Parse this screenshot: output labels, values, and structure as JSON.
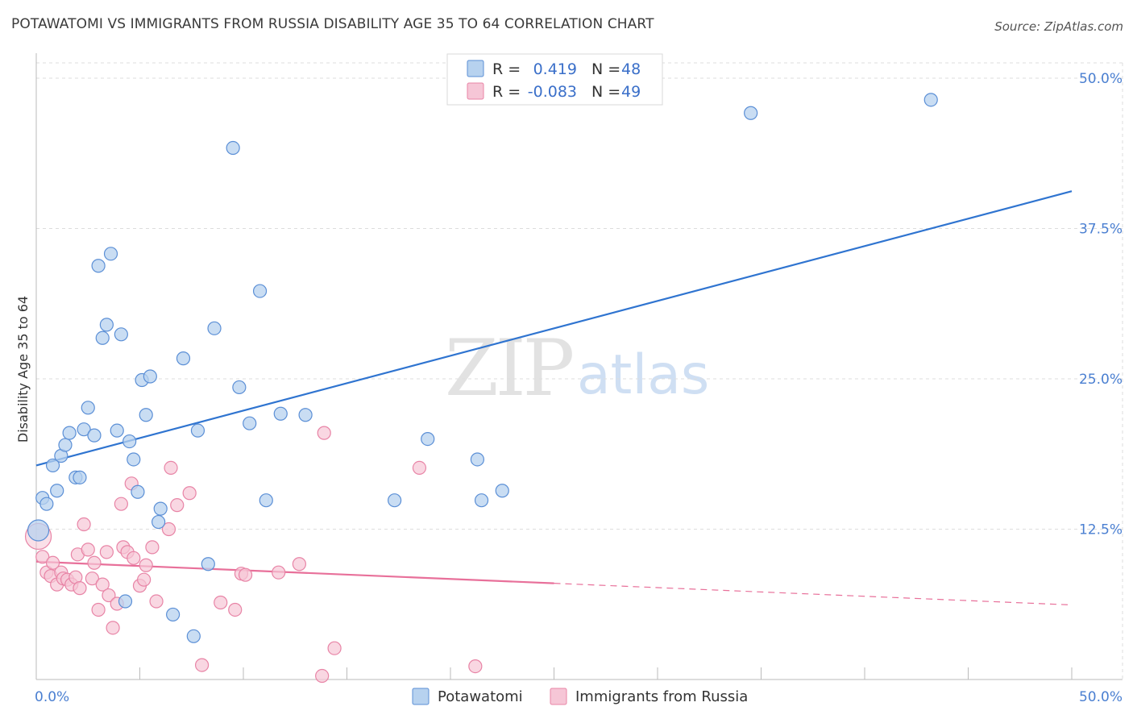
{
  "header": {
    "title": "POTAWATOMI VS IMMIGRANTS FROM RUSSIA DISABILITY AGE 35 TO 64 CORRELATION CHART",
    "source": "Source: ZipAtlas.com"
  },
  "watermark": {
    "zip": "ZIP",
    "atlas": "atlas"
  },
  "colors": {
    "blue_fill": "#b7d2ef",
    "blue_stroke": "#5b8fd6",
    "blue_line": "#2f74d0",
    "pink_fill": "#f6c6d6",
    "pink_stroke": "#e884a6",
    "pink_line": "#e8709a",
    "axis_label": "#4a7fd1",
    "grid": "#dddddd"
  },
  "legend": {
    "rows": [
      {
        "r_label": "R =",
        "r_value": "0.419",
        "n_label": "N =",
        "n_value": "48"
      },
      {
        "r_label": "R =",
        "r_value": "-0.083",
        "n_label": "N =",
        "n_value": "49"
      }
    ]
  },
  "chart_data": {
    "type": "scatter",
    "title": "POTAWATOMI VS IMMIGRANTS FROM RUSSIA DISABILITY AGE 35 TO 64 CORRELATION CHART",
    "xlabel": "",
    "ylabel": "Disability Age 35 to 64",
    "xlim": [
      0,
      50
    ],
    "ylim": [
      0,
      50
    ],
    "x_tick_labels": [
      "0.0%",
      "50.0%"
    ],
    "y_tick_values": [
      12.5,
      25.0,
      37.5,
      50.0
    ],
    "y_tick_labels": [
      "12.5%",
      "25.0%",
      "37.5%",
      "50.0%"
    ],
    "grid": true,
    "legend_position": "top-center",
    "series": [
      {
        "name": "Potawatomi",
        "color": "blue",
        "r": 0.419,
        "n": 48,
        "trend": {
          "x": [
            0,
            50
          ],
          "y": [
            17.8,
            40.6
          ],
          "dashed_from": null
        },
        "points": [
          [
            0.1,
            12.4
          ],
          [
            0.3,
            15.1
          ],
          [
            0.5,
            14.6
          ],
          [
            0.8,
            17.8
          ],
          [
            1.0,
            15.7
          ],
          [
            1.2,
            18.6
          ],
          [
            1.4,
            19.5
          ],
          [
            1.6,
            20.5
          ],
          [
            1.9,
            16.8
          ],
          [
            2.1,
            16.8
          ],
          [
            2.3,
            20.8
          ],
          [
            2.5,
            22.6
          ],
          [
            2.8,
            20.3
          ],
          [
            3.0,
            34.4
          ],
          [
            3.2,
            28.4
          ],
          [
            3.4,
            29.5
          ],
          [
            3.6,
            35.4
          ],
          [
            3.9,
            20.7
          ],
          [
            4.1,
            28.7
          ],
          [
            4.3,
            6.5
          ],
          [
            4.5,
            19.8
          ],
          [
            4.7,
            18.3
          ],
          [
            4.9,
            15.6
          ],
          [
            5.1,
            24.9
          ],
          [
            5.3,
            22.0
          ],
          [
            5.5,
            25.2
          ],
          [
            5.9,
            13.1
          ],
          [
            6.0,
            14.2
          ],
          [
            6.6,
            5.4
          ],
          [
            7.1,
            26.7
          ],
          [
            7.6,
            3.6
          ],
          [
            7.8,
            20.7
          ],
          [
            8.3,
            9.6
          ],
          [
            8.6,
            29.2
          ],
          [
            9.5,
            44.2
          ],
          [
            9.8,
            24.3
          ],
          [
            10.3,
            21.3
          ],
          [
            10.8,
            32.3
          ],
          [
            11.1,
            14.9
          ],
          [
            11.8,
            22.1
          ],
          [
            13.0,
            22.0
          ],
          [
            17.3,
            14.9
          ],
          [
            18.9,
            20.0
          ],
          [
            21.3,
            18.3
          ],
          [
            21.5,
            14.9
          ],
          [
            22.5,
            15.7
          ],
          [
            34.5,
            47.1
          ],
          [
            43.2,
            48.2
          ]
        ]
      },
      {
        "name": "Immigrants from Russia",
        "color": "pink",
        "r": -0.083,
        "n": 49,
        "trend": {
          "x": [
            0,
            50
          ],
          "y": [
            9.8,
            6.2
          ],
          "dashed_from": 25.0
        },
        "points": [
          [
            0.1,
            11.9
          ],
          [
            0.3,
            10.2
          ],
          [
            0.5,
            8.9
          ],
          [
            0.7,
            8.6
          ],
          [
            0.8,
            9.7
          ],
          [
            1.0,
            7.9
          ],
          [
            1.2,
            8.9
          ],
          [
            1.3,
            8.4
          ],
          [
            1.5,
            8.3
          ],
          [
            1.7,
            7.9
          ],
          [
            1.9,
            8.5
          ],
          [
            2.0,
            10.4
          ],
          [
            2.1,
            7.6
          ],
          [
            2.3,
            12.9
          ],
          [
            2.5,
            10.8
          ],
          [
            2.7,
            8.4
          ],
          [
            2.8,
            9.7
          ],
          [
            3.0,
            5.8
          ],
          [
            3.2,
            7.9
          ],
          [
            3.4,
            10.6
          ],
          [
            3.5,
            7.0
          ],
          [
            3.7,
            4.3
          ],
          [
            3.9,
            6.3
          ],
          [
            4.1,
            14.6
          ],
          [
            4.2,
            11.0
          ],
          [
            4.4,
            10.6
          ],
          [
            4.6,
            16.3
          ],
          [
            4.7,
            10.1
          ],
          [
            5.0,
            7.8
          ],
          [
            5.2,
            8.3
          ],
          [
            5.3,
            9.5
          ],
          [
            5.6,
            11.0
          ],
          [
            5.8,
            6.5
          ],
          [
            6.4,
            12.5
          ],
          [
            6.5,
            17.6
          ],
          [
            6.8,
            14.5
          ],
          [
            7.4,
            15.5
          ],
          [
            8.0,
            1.2
          ],
          [
            8.9,
            6.4
          ],
          [
            9.6,
            5.8
          ],
          [
            9.9,
            8.8
          ],
          [
            10.1,
            8.7
          ],
          [
            11.7,
            8.9
          ],
          [
            12.7,
            9.6
          ],
          [
            13.8,
            0.3
          ],
          [
            13.9,
            20.5
          ],
          [
            14.4,
            2.6
          ],
          [
            18.5,
            17.6
          ],
          [
            21.2,
            1.1
          ]
        ]
      }
    ]
  },
  "bottom_legend": [
    {
      "label": "Potawatomi"
    },
    {
      "label": "Immigrants from Russia"
    }
  ]
}
